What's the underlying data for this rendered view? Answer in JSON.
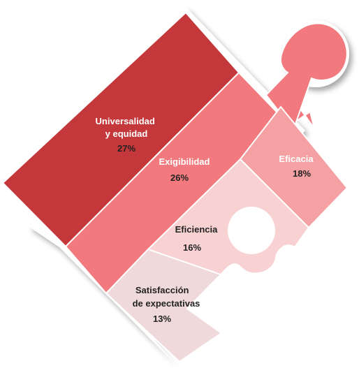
{
  "chart_data": {
    "type": "puzzle-treemap",
    "title": "",
    "segments": [
      {
        "label_lines": [
          "Universalidad",
          "y equidad"
        ],
        "value_label": "27%",
        "value": 27,
        "color": "#c4373a",
        "text_color": "#ffffff",
        "value_color": "#222222"
      },
      {
        "label_lines": [
          "Exigibilidad"
        ],
        "value_label": "26%",
        "value": 26,
        "color": "#f27a7e",
        "text_color": "#ffffff",
        "value_color": "#222222"
      },
      {
        "label_lines": [
          "Eficacia"
        ],
        "value_label": "18%",
        "value": 18,
        "color": "#f5a0a3",
        "text_color": "#ffffff",
        "value_color": "#222222"
      },
      {
        "label_lines": [
          "Eficiencia"
        ],
        "value_label": "16%",
        "value": 16,
        "color": "#f8d1d2",
        "text_color": "#222222",
        "value_color": "#222222"
      },
      {
        "label_lines": [
          "Satisfacción",
          "de expectativas"
        ],
        "value_label": "13%",
        "value": 13,
        "color": "#efd9da",
        "text_color": "#222222",
        "value_color": "#222222"
      }
    ]
  }
}
